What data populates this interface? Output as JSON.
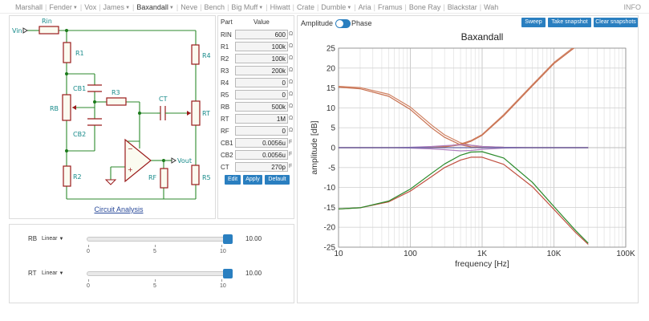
{
  "nav": {
    "items": [
      {
        "label": "Marshall",
        "dropdown": false,
        "active": false
      },
      {
        "label": "Fender",
        "dropdown": true,
        "active": false
      },
      {
        "label": "Vox",
        "dropdown": false,
        "active": false
      },
      {
        "label": "James",
        "dropdown": true,
        "active": false
      },
      {
        "label": "Baxandall",
        "dropdown": true,
        "active": true
      },
      {
        "label": "Neve",
        "dropdown": false,
        "active": false
      },
      {
        "label": "Bench",
        "dropdown": false,
        "active": false
      },
      {
        "label": "Big Muff",
        "dropdown": true,
        "active": false
      },
      {
        "label": "Hiwatt",
        "dropdown": false,
        "active": false
      },
      {
        "label": "Crate",
        "dropdown": false,
        "active": false
      },
      {
        "label": "Dumble",
        "dropdown": true,
        "active": false
      },
      {
        "label": "Aria",
        "dropdown": false,
        "active": false
      },
      {
        "label": "Framus",
        "dropdown": false,
        "active": false
      },
      {
        "label": "Bone Ray",
        "dropdown": false,
        "active": false
      },
      {
        "label": "Blackstar",
        "dropdown": false,
        "active": false
      },
      {
        "label": "Wah",
        "dropdown": false,
        "active": false
      }
    ],
    "info_label": "INFO"
  },
  "circuit": {
    "labels": {
      "vin": "Vin",
      "rin": "Rin",
      "r1": "R1",
      "r2": "R2",
      "r3": "R3",
      "r4": "R4",
      "r5": "R5",
      "rb": "RB",
      "rt": "RT",
      "rf": "RF",
      "cb1": "CB1",
      "cb2": "CB2",
      "ct": "CT",
      "vout": "Vout"
    },
    "analysis_link": "Circuit Analysis"
  },
  "parts": {
    "header": {
      "part": "Part",
      "value": "Value"
    },
    "rows": [
      {
        "name": "RIN",
        "value": "600",
        "unit": "Ω"
      },
      {
        "name": "R1",
        "value": "100k",
        "unit": "Ω"
      },
      {
        "name": "R2",
        "value": "100k",
        "unit": "Ω"
      },
      {
        "name": "R3",
        "value": "200k",
        "unit": "Ω"
      },
      {
        "name": "R4",
        "value": "0",
        "unit": "Ω"
      },
      {
        "name": "R5",
        "value": "0",
        "unit": "Ω"
      },
      {
        "name": "RB",
        "value": "500k",
        "unit": "Ω"
      },
      {
        "name": "RT",
        "value": "1M",
        "unit": "Ω"
      },
      {
        "name": "RF",
        "value": "0",
        "unit": "Ω"
      },
      {
        "name": "CB1",
        "value": "0.0056u",
        "unit": "F"
      },
      {
        "name": "CB2",
        "value": "0.0056u",
        "unit": "F"
      },
      {
        "name": "CT",
        "value": "270p",
        "unit": "F"
      }
    ],
    "buttons": {
      "edit": "Edit",
      "apply": "Apply",
      "default": "Default"
    }
  },
  "plot_controls": {
    "amplitude_label": "Amplitude",
    "phase_label": "Phase",
    "sweep": "Sweep",
    "take_snapshot": "Take snapshot",
    "clear_snapshots": "Clear snapshots"
  },
  "sliders": [
    {
      "name": "RB",
      "mode": "Linear",
      "value": "10.00",
      "fraction": 1.0,
      "ticks": [
        "0",
        "5",
        "10"
      ]
    },
    {
      "name": "RT",
      "mode": "Linear",
      "value": "10.00",
      "fraction": 1.0,
      "ticks": [
        "0",
        "5",
        "10"
      ]
    }
  ],
  "chart_data": {
    "type": "line",
    "title": "Baxandall",
    "xlabel": "frequency [Hz]",
    "ylabel": "amplitude [dB]",
    "xscale": "log",
    "xlim": [
      10,
      100000
    ],
    "ylim": [
      -25,
      25
    ],
    "x_ticks": [
      10,
      100,
      1000,
      10000,
      100000
    ],
    "x_tick_labels": [
      "10",
      "100",
      "1K",
      "10K",
      "100K"
    ],
    "y_ticks": [
      -25,
      -20,
      -15,
      -10,
      -5,
      0,
      5,
      10,
      15,
      20,
      25
    ],
    "grid": true,
    "x": [
      10,
      20,
      50,
      100,
      200,
      300,
      500,
      700,
      1000,
      2000,
      5000,
      10000,
      20000,
      30000
    ],
    "series": [
      {
        "color": "#d08060",
        "values": [
          15.4,
          15.1,
          13.4,
          10.2,
          5.6,
          3.2,
          1.2,
          0.6,
          0.3,
          0.1,
          0.0,
          0.0,
          0.0,
          0.0
        ]
      },
      {
        "color": "#c87050",
        "values": [
          15.2,
          14.8,
          12.9,
          9.6,
          4.9,
          2.6,
          0.7,
          0.2,
          0.1,
          0.0,
          0.0,
          0.0,
          0.0,
          0.0
        ]
      },
      {
        "color": "#d08060",
        "values": [
          0.0,
          0.0,
          0.0,
          0.0,
          0.1,
          0.3,
          0.9,
          1.8,
          3.3,
          8.3,
          15.8,
          21.4,
          25.6,
          27.5
        ]
      },
      {
        "color": "#c87050",
        "values": [
          0.0,
          0.0,
          0.0,
          0.0,
          0.0,
          0.2,
          0.7,
          1.6,
          3.1,
          8.0,
          15.5,
          21.1,
          25.3,
          27.2
        ]
      },
      {
        "color": "#c05040",
        "values": [
          -15.4,
          -15.1,
          -13.6,
          -10.9,
          -7.2,
          -5.0,
          -3.1,
          -2.4,
          -2.4,
          -4.2,
          -9.8,
          -15.5,
          -21.3,
          -24.3
        ]
      },
      {
        "color": "#2a8a2a",
        "values": [
          -15.4,
          -15.1,
          -13.4,
          -10.4,
          -6.4,
          -4.1,
          -1.9,
          -1.1,
          -1.0,
          -2.6,
          -8.7,
          -14.8,
          -20.8,
          -24.0
        ]
      },
      {
        "color": "#b080c0",
        "values": [
          0.0,
          0.0,
          0.0,
          -0.1,
          -0.3,
          -0.5,
          -0.8,
          -0.7,
          -0.4,
          -0.1,
          0.0,
          0.0,
          0.0,
          0.0
        ]
      },
      {
        "color": "#b080c0",
        "values": [
          0.0,
          0.0,
          0.0,
          0.1,
          0.3,
          0.5,
          0.7,
          0.6,
          0.3,
          0.1,
          0.0,
          0.0,
          0.0,
          0.0
        ]
      },
      {
        "color": "#6060a0",
        "values": [
          0.0,
          0.0,
          0.0,
          0.0,
          0.0,
          0.0,
          0.0,
          0.0,
          0.0,
          0.0,
          0.0,
          0.0,
          0.0,
          0.0
        ]
      }
    ]
  }
}
